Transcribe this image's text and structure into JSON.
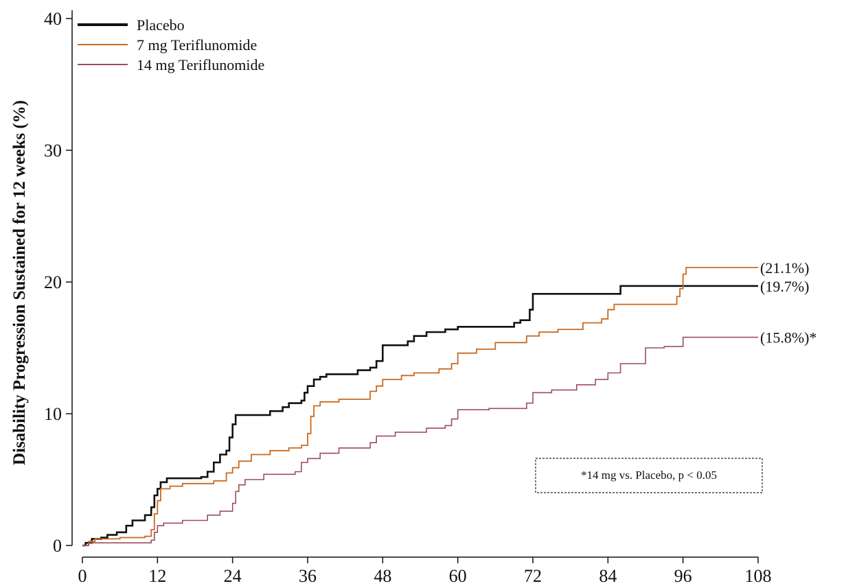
{
  "chart_data": {
    "type": "line",
    "title": "",
    "xlabel": "",
    "ylabel": "Disability Progression Sustained for 12 weeks (%)",
    "xlim": [
      0,
      108
    ],
    "ylim": [
      0,
      40
    ],
    "x_ticks": [
      "0",
      "12",
      "24",
      "36",
      "48",
      "60",
      "72",
      "84",
      "96",
      "108"
    ],
    "y_ticks": [
      "0",
      "10",
      "20",
      "30",
      "40"
    ],
    "grid": false,
    "legend": {
      "placement": "top-left"
    },
    "step": true,
    "series": [
      {
        "name": "Placebo",
        "color": "#111111",
        "end_label": "(19.7%)",
        "points": [
          [
            0,
            0
          ],
          [
            0.5,
            0.2
          ],
          [
            1.5,
            0.5
          ],
          [
            3,
            0.6
          ],
          [
            4,
            0.8
          ],
          [
            5.5,
            1.0
          ],
          [
            7,
            1.5
          ],
          [
            8,
            1.9
          ],
          [
            10,
            2.3
          ],
          [
            11,
            2.9
          ],
          [
            11.5,
            3.8
          ],
          [
            12,
            4.3
          ],
          [
            12.5,
            4.8
          ],
          [
            13.5,
            5.1
          ],
          [
            19,
            5.2
          ],
          [
            20,
            5.6
          ],
          [
            21,
            6.3
          ],
          [
            22,
            6.9
          ],
          [
            23,
            7.2
          ],
          [
            23.5,
            8.2
          ],
          [
            24,
            9.2
          ],
          [
            24.5,
            9.9
          ],
          [
            30,
            10.2
          ],
          [
            32,
            10.5
          ],
          [
            33,
            10.8
          ],
          [
            35,
            11.0
          ],
          [
            35.5,
            11.6
          ],
          [
            36,
            12.1
          ],
          [
            37,
            12.6
          ],
          [
            38,
            12.8
          ],
          [
            39,
            13.0
          ],
          [
            44,
            13.3
          ],
          [
            46,
            13.5
          ],
          [
            47,
            14.0
          ],
          [
            48,
            15.2
          ],
          [
            52,
            15.5
          ],
          [
            53,
            15.9
          ],
          [
            55,
            16.2
          ],
          [
            58,
            16.4
          ],
          [
            60,
            16.6
          ],
          [
            69,
            16.9
          ],
          [
            70,
            17.1
          ],
          [
            71.5,
            17.9
          ],
          [
            72,
            19.1
          ],
          [
            86,
            19.7
          ],
          [
            108,
            19.7
          ]
        ]
      },
      {
        "name": "7 mg Teriflunomide",
        "color": "#c8691e",
        "end_label": "(21.1%)",
        "points": [
          [
            0,
            0
          ],
          [
            1,
            0.3
          ],
          [
            2,
            0.5
          ],
          [
            6,
            0.6
          ],
          [
            10,
            0.7
          ],
          [
            11,
            1.2
          ],
          [
            11.5,
            2.4
          ],
          [
            12,
            3.4
          ],
          [
            12.5,
            4.3
          ],
          [
            14,
            4.5
          ],
          [
            16,
            4.7
          ],
          [
            21,
            4.9
          ],
          [
            23,
            5.5
          ],
          [
            24,
            5.9
          ],
          [
            25,
            6.4
          ],
          [
            27,
            6.9
          ],
          [
            30,
            7.2
          ],
          [
            33,
            7.4
          ],
          [
            35,
            7.6
          ],
          [
            36,
            8.5
          ],
          [
            36.5,
            9.8
          ],
          [
            37,
            10.6
          ],
          [
            38,
            10.9
          ],
          [
            41,
            11.1
          ],
          [
            46,
            11.7
          ],
          [
            47,
            12.1
          ],
          [
            48,
            12.6
          ],
          [
            51,
            12.9
          ],
          [
            53,
            13.1
          ],
          [
            57,
            13.4
          ],
          [
            59,
            13.8
          ],
          [
            60,
            14.6
          ],
          [
            63,
            14.9
          ],
          [
            66,
            15.4
          ],
          [
            71,
            15.9
          ],
          [
            73,
            16.2
          ],
          [
            76,
            16.4
          ],
          [
            80,
            16.9
          ],
          [
            83,
            17.2
          ],
          [
            84,
            17.9
          ],
          [
            85,
            18.3
          ],
          [
            95,
            18.9
          ],
          [
            95.5,
            19.5
          ],
          [
            96,
            20.6
          ],
          [
            96.5,
            21.1
          ],
          [
            108,
            21.1
          ]
        ]
      },
      {
        "name": "14 mg Teriflunomide",
        "color": "#9a4d5c",
        "end_label": "(15.8%)*",
        "points": [
          [
            0,
            0
          ],
          [
            1,
            0.2
          ],
          [
            4,
            0.2
          ],
          [
            11,
            0.4
          ],
          [
            11.5,
            1.0
          ],
          [
            12,
            1.5
          ],
          [
            13,
            1.7
          ],
          [
            16,
            1.9
          ],
          [
            20,
            2.3
          ],
          [
            22,
            2.6
          ],
          [
            24,
            3.2
          ],
          [
            24.5,
            4.1
          ],
          [
            25,
            4.6
          ],
          [
            26,
            5.0
          ],
          [
            29,
            5.4
          ],
          [
            34,
            5.6
          ],
          [
            35,
            6.3
          ],
          [
            36,
            6.6
          ],
          [
            38,
            7.0
          ],
          [
            41,
            7.4
          ],
          [
            46,
            7.8
          ],
          [
            47,
            8.3
          ],
          [
            50,
            8.6
          ],
          [
            55,
            8.9
          ],
          [
            58,
            9.1
          ],
          [
            59,
            9.6
          ],
          [
            60,
            10.3
          ],
          [
            65,
            10.4
          ],
          [
            71,
            10.8
          ],
          [
            72,
            11.6
          ],
          [
            75,
            11.8
          ],
          [
            79,
            12.2
          ],
          [
            82,
            12.6
          ],
          [
            84,
            13.1
          ],
          [
            86,
            13.8
          ],
          [
            90,
            15.0
          ],
          [
            93,
            15.1
          ],
          [
            96,
            15.8
          ],
          [
            108,
            15.8
          ]
        ]
      }
    ],
    "annotations": [
      "*14 mg vs. Placebo, p < 0.05"
    ]
  }
}
